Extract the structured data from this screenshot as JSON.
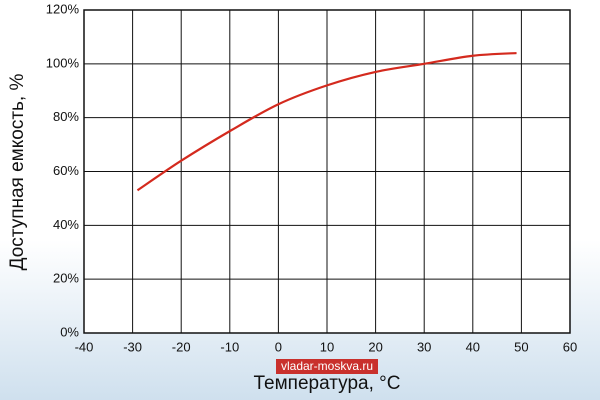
{
  "chart_data": {
    "type": "line",
    "xlabel": "Температура, °C",
    "ylabel": "Доступная емкость, %",
    "annotation": "vladar-moskva.ru",
    "series": [
      {
        "color": "#d42a1e",
        "x": [
          -29,
          -20,
          -10,
          0,
          10,
          20,
          30,
          40,
          49
        ],
        "values": [
          53,
          64,
          75,
          85,
          92,
          97,
          100,
          103,
          104
        ]
      }
    ],
    "xlim": [
      -40,
      60
    ],
    "xticks": [
      -40,
      -30,
      -20,
      -10,
      0,
      10,
      20,
      30,
      40,
      50,
      60
    ],
    "ylim": [
      0,
      120
    ],
    "yticks": [
      {
        "value": 0,
        "label": "0%"
      },
      {
        "value": 20,
        "label": "20%"
      },
      {
        "value": 40,
        "label": "40%"
      },
      {
        "value": 60,
        "label": "60%"
      },
      {
        "value": 80,
        "label": "80%"
      },
      {
        "value": 100,
        "label": "100%"
      },
      {
        "value": 120,
        "label": "120%"
      }
    ],
    "grid": true
  }
}
